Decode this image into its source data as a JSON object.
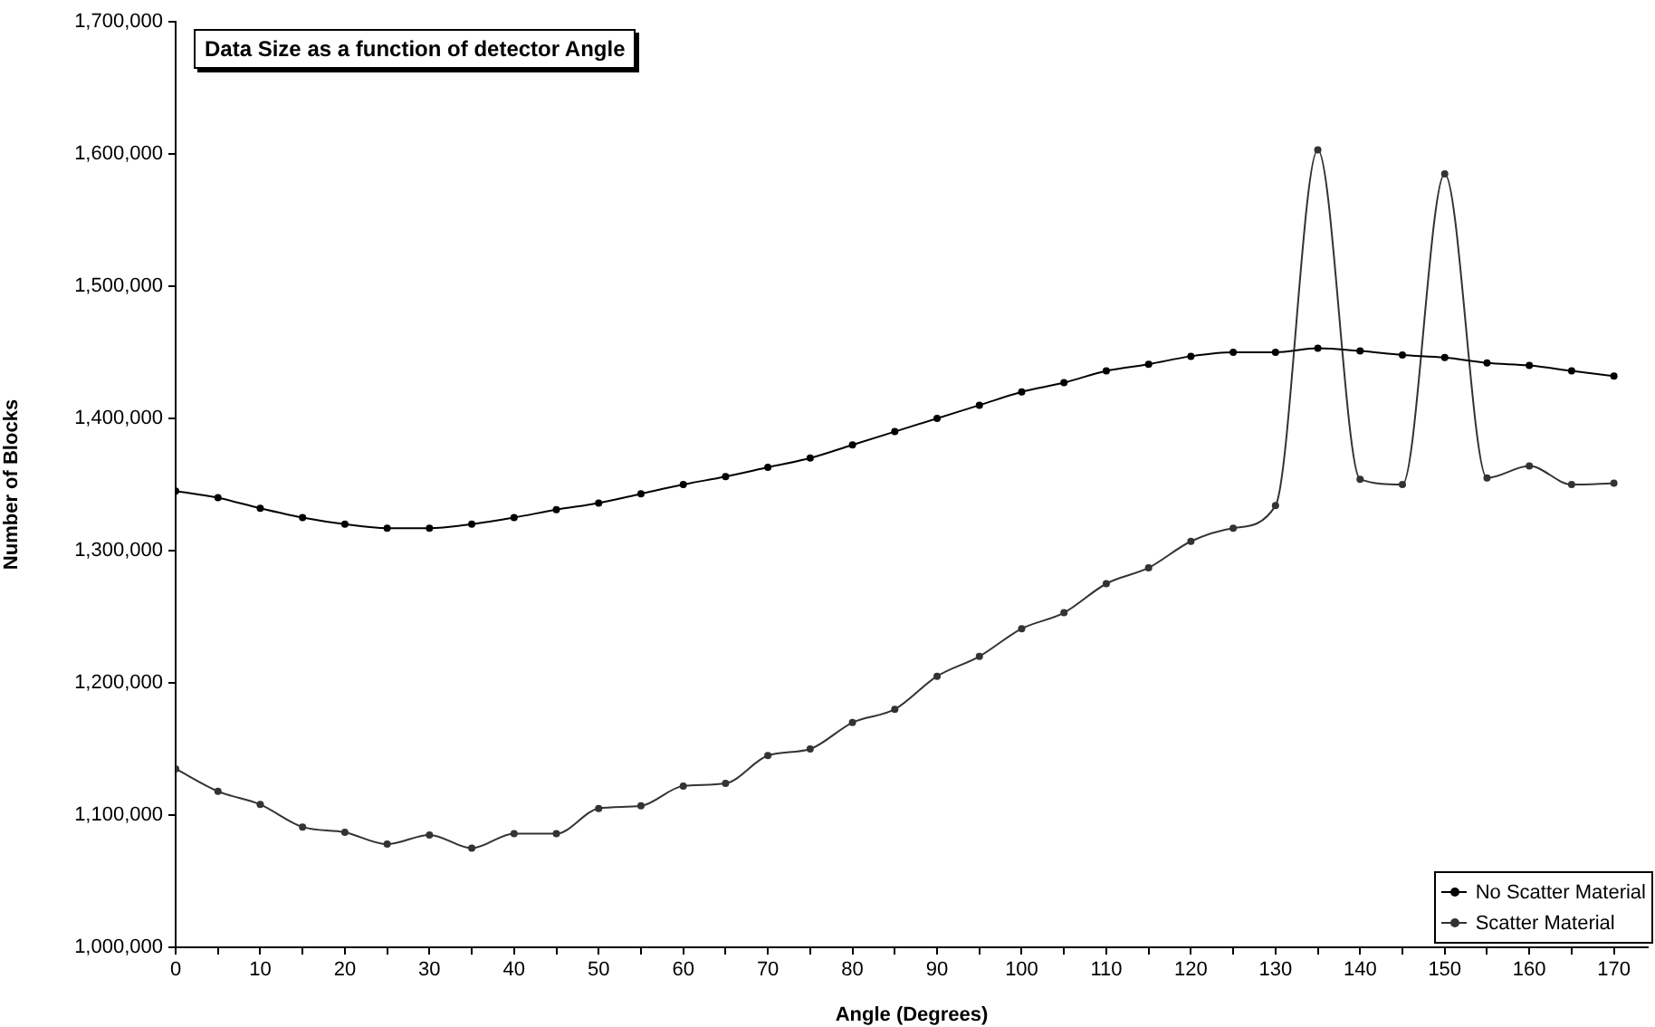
{
  "chart_data": {
    "type": "line",
    "title": "Data Size as a function of detector Angle",
    "xlabel": "Angle (Degrees)",
    "ylabel": "Number of Blocks",
    "x": [
      0,
      5,
      10,
      15,
      20,
      25,
      30,
      35,
      40,
      45,
      50,
      55,
      60,
      65,
      70,
      75,
      80,
      85,
      90,
      95,
      100,
      105,
      110,
      115,
      120,
      125,
      130,
      135,
      140,
      145,
      150,
      155,
      160,
      165,
      170
    ],
    "series": [
      {
        "name": "No Scatter Material",
        "color": "#000000",
        "values": [
          1345000,
          1340000,
          1332000,
          1325000,
          1320000,
          1317000,
          1317000,
          1320000,
          1325000,
          1331000,
          1336000,
          1343000,
          1350000,
          1356000,
          1363000,
          1370000,
          1380000,
          1390000,
          1400000,
          1410000,
          1420000,
          1427000,
          1436000,
          1441000,
          1447000,
          1450000,
          1450000,
          1453000,
          1451000,
          1448000,
          1446000,
          1442000,
          1440000,
          1436000,
          1432000
        ]
      },
      {
        "name": "Scatter Material",
        "color": "#333333",
        "values": [
          1135000,
          1118000,
          1108000,
          1091000,
          1087000,
          1078000,
          1085000,
          1075000,
          1086000,
          1086000,
          1105000,
          1107000,
          1122000,
          1124000,
          1145000,
          1150000,
          1170000,
          1180000,
          1205000,
          1220000,
          1241000,
          1253000,
          1275000,
          1287000,
          1307000,
          1317000,
          1334000,
          1603000,
          1354000,
          1350000,
          1585000,
          1355000,
          1364000,
          1350000,
          1351000
        ]
      }
    ],
    "xlim": [
      0,
      174
    ],
    "xticks": [
      0,
      {
        "value": 5,
        "label": null
      },
      10,
      {
        "value": 15,
        "label": null
      },
      20,
      {
        "value": 25,
        "label": null
      },
      30,
      {
        "value": 35,
        "label": null
      },
      40,
      {
        "value": 45,
        "label": null
      },
      50,
      {
        "value": 55,
        "label": null
      },
      60,
      {
        "value": 65,
        "label": null
      },
      70,
      {
        "value": 75,
        "label": null
      },
      80,
      {
        "value": 85,
        "label": null
      },
      90,
      {
        "value": 95,
        "label": null
      },
      100,
      {
        "value": 105,
        "label": null
      },
      110,
      {
        "value": 115,
        "label": null
      },
      120,
      {
        "value": 125,
        "label": null
      },
      130,
      {
        "value": 135,
        "label": null
      },
      140,
      {
        "value": 145,
        "label": null
      },
      150,
      {
        "value": 155,
        "label": null
      },
      160,
      {
        "value": 165,
        "label": null
      },
      170
    ],
    "ylim": [
      1000000,
      1700000
    ],
    "yticks": [
      {
        "value": 1000000,
        "label": "1,000,000"
      },
      {
        "value": 1100000,
        "label": "1,100,000"
      },
      {
        "value": 1200000,
        "label": "1,200,000"
      },
      {
        "value": 1300000,
        "label": "1,300,000"
      },
      {
        "value": 1400000,
        "label": "1,400,000"
      },
      {
        "value": 1500000,
        "label": "1,500,000"
      },
      {
        "value": 1600000,
        "label": "1,600,000"
      },
      {
        "value": 1700000,
        "label": "1,700,000"
      }
    ],
    "grid": false,
    "legend": "bottom right",
    "marker": "circle",
    "line_style": "solid"
  }
}
